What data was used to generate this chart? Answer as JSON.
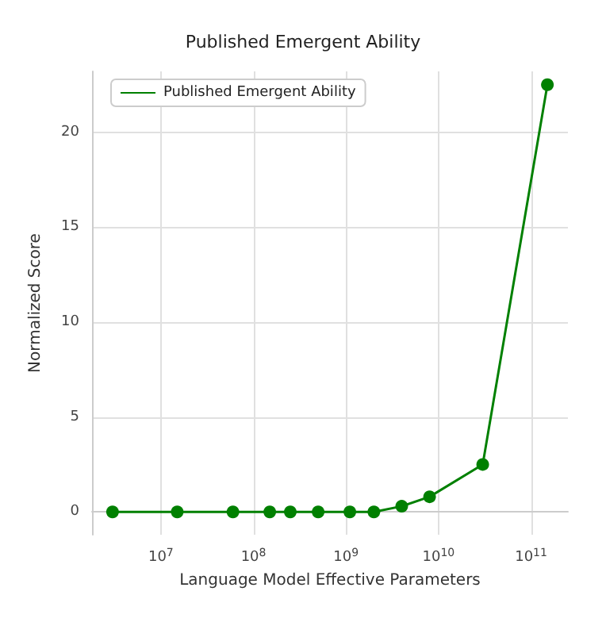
{
  "chart_data": {
    "type": "line",
    "title": "Published Emergent Ability",
    "xlabel": "Language Model Effective Parameters",
    "ylabel": "Normalized Score",
    "x": [
      3000000,
      15000000,
      60000000,
      150000000,
      250000000,
      500000000,
      1100000000,
      2000000000,
      4000000000,
      8000000000,
      30000000000,
      150000000000
    ],
    "series": [
      {
        "name": "Published Emergent Ability",
        "color": "#008000",
        "values": [
          0,
          0,
          0,
          0,
          0,
          0,
          0,
          0,
          0.3,
          0.8,
          2.5,
          22.5
        ]
      }
    ],
    "log": "x",
    "xlim": [
      1800000,
      250000000000
    ],
    "xticks": [
      {
        "value": 10000000,
        "label": "10$^{7}$"
      },
      {
        "value": 100000000,
        "label": "10$^{8}$"
      },
      {
        "value": 1000000000,
        "label": "10$^{9}$"
      },
      {
        "value": 10000000000,
        "label": "10$^{10}$"
      },
      {
        "value": 100000000000,
        "label": "10$^{11}$"
      }
    ],
    "ylim": [
      -1.2,
      23.2
    ],
    "yticks": [
      0,
      5,
      10,
      15,
      20
    ],
    "grid": true,
    "legend": "top left",
    "marker": "circle",
    "line_style": "solid"
  }
}
